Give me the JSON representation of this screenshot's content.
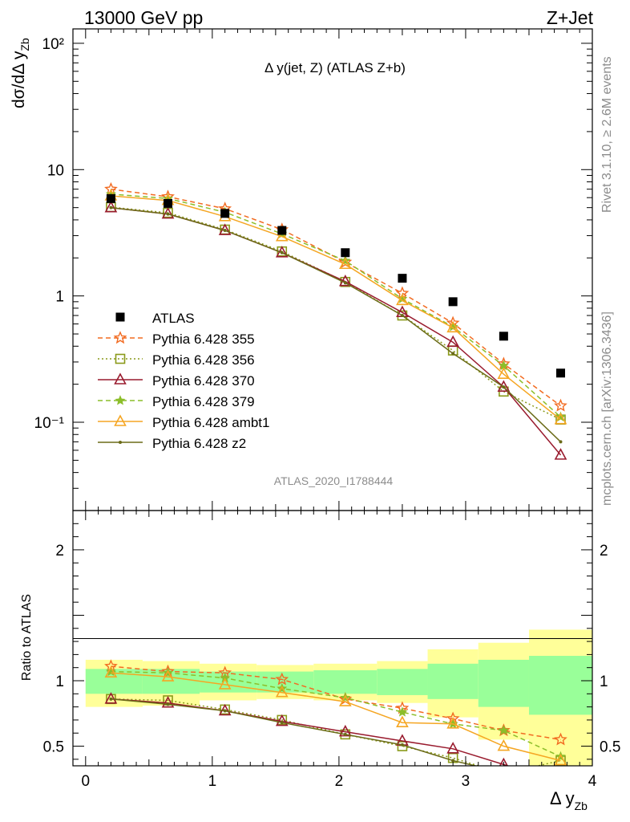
{
  "header": {
    "left": "13000 GeV pp",
    "right": "Z+Jet"
  },
  "side": {
    "rivet": "Rivet 3.1.10, ≥ 2.6M events",
    "mcplots": "mcplots.cern.ch [arXiv:1306.3436]"
  },
  "analysis_label": "ATLAS_2020_I1788444",
  "plot_title": "Δ y(jet, Z) (ATLAS Z+b)",
  "chart_data": [
    {
      "type": "scatter",
      "panel": "main",
      "scale": "log",
      "title": "Δ y(jet, Z) (ATLAS Z+b)",
      "ylabel": "dσ/dΔ y_Zb",
      "xlim": [
        -0.1,
        4.0
      ],
      "ylim": [
        0.02,
        130
      ],
      "yticks": [
        {
          "v": 0.1,
          "label": "10⁻¹"
        },
        {
          "v": 1,
          "label": "1"
        },
        {
          "v": 10,
          "label": "10"
        },
        {
          "v": 100,
          "label": "10²"
        }
      ],
      "data_points": {
        "name": "ATLAS",
        "x": [
          0.2,
          0.65,
          1.1,
          1.55,
          2.05,
          2.5,
          2.9,
          3.3,
          3.75
        ],
        "y": [
          5.9,
          5.4,
          4.5,
          3.3,
          2.2,
          1.38,
          0.9,
          0.48,
          0.245
        ]
      },
      "band_edges": [
        0.0,
        0.45,
        0.9,
        1.35,
        1.8,
        2.3,
        2.7,
        3.1,
        3.5,
        4.0
      ],
      "series": [
        {
          "name": "Pythia 6.428 355",
          "color": "#f26b21",
          "dash": "6,4",
          "marker": "star",
          "y": [
            7.0,
            6.1,
            4.9,
            3.35,
            1.85,
            1.05,
            0.61,
            0.29,
            0.135
          ]
        },
        {
          "name": "Pythia 6.428 356",
          "color": "#8a9a1a",
          "dash": "2,3",
          "marker": "square",
          "y": [
            5.05,
            4.55,
            3.35,
            2.25,
            1.29,
            0.7,
            0.37,
            0.175,
            0.105
          ]
        },
        {
          "name": "Pythia 6.428 370",
          "color": "#991b2e",
          "dash": "",
          "marker": "triangle",
          "y": [
            5.0,
            4.45,
            3.3,
            2.2,
            1.3,
            0.74,
            0.43,
            0.19,
            0.055
          ]
        },
        {
          "name": "Pythia 6.428 379",
          "color": "#8cbe2a",
          "dash": "6,4",
          "marker": "smallstar",
          "y": [
            6.4,
            5.9,
            4.6,
            3.1,
            1.9,
            0.95,
            0.57,
            0.28,
            0.11
          ]
        },
        {
          "name": "Pythia 6.428 ambt1",
          "color": "#f5a623",
          "dash": "",
          "marker": "triangle",
          "y": [
            6.2,
            5.7,
            4.25,
            2.95,
            1.78,
            0.92,
            0.56,
            0.24,
            0.105
          ]
        },
        {
          "name": "Pythia 6.428 z2",
          "color": "#6b6b18",
          "dash": "",
          "marker": "dot",
          "y": [
            5.0,
            4.45,
            3.3,
            2.2,
            1.27,
            0.7,
            0.35,
            0.19,
            0.07
          ]
        }
      ]
    },
    {
      "type": "line",
      "panel": "ratio",
      "ylabel": "Ratio to ATLAS",
      "xlabel": "Δ y_Zb",
      "xlim": [
        -0.1,
        4.0
      ],
      "ylim": [
        0.35,
        2.3
      ],
      "xticks": [
        "0",
        "1",
        "2",
        "3",
        "4"
      ],
      "yticks": [
        {
          "v": 0.5,
          "label": "0.5"
        },
        {
          "v": 1,
          "label": "1"
        },
        {
          "v": 2,
          "label": "2"
        }
      ],
      "green_band": {
        "lo": [
          0.9,
          0.9,
          0.91,
          0.91,
          0.9,
          0.89,
          0.86,
          0.8,
          0.74
        ],
        "hi": [
          1.09,
          1.09,
          1.07,
          1.07,
          1.08,
          1.09,
          1.13,
          1.16,
          1.19
        ]
      },
      "yellow_band": {
        "lo": [
          0.8,
          0.81,
          0.85,
          0.86,
          0.85,
          0.83,
          0.72,
          0.55,
          0.3
        ],
        "hi": [
          1.16,
          1.15,
          1.13,
          1.12,
          1.13,
          1.15,
          1.24,
          1.29,
          1.39
        ]
      },
      "series": [
        {
          "name": "Pythia 6.428 355",
          "y": [
            1.11,
            1.07,
            1.06,
            1.01,
            0.86,
            0.79,
            0.71,
            0.62,
            0.55
          ]
        },
        {
          "name": "Pythia 6.428 356",
          "y": [
            0.86,
            0.85,
            0.78,
            0.7,
            0.59,
            0.5,
            0.41,
            0.29,
            0.39
          ]
        },
        {
          "name": "Pythia 6.428 370",
          "y": [
            0.86,
            0.83,
            0.77,
            0.69,
            0.61,
            0.54,
            0.48,
            0.36,
            0.22
          ]
        },
        {
          "name": "Pythia 6.428 379",
          "y": [
            1.07,
            1.06,
            1.02,
            0.94,
            0.87,
            0.76,
            0.67,
            0.62,
            0.42
          ]
        },
        {
          "name": "Pythia 6.428 ambt1",
          "y": [
            1.06,
            1.03,
            0.97,
            0.91,
            0.84,
            0.68,
            0.67,
            0.5,
            0.39
          ]
        },
        {
          "name": "Pythia 6.428 z2",
          "y": [
            0.86,
            0.82,
            0.77,
            0.68,
            0.59,
            0.51,
            0.39,
            0.3,
            0.28
          ]
        }
      ]
    }
  ]
}
